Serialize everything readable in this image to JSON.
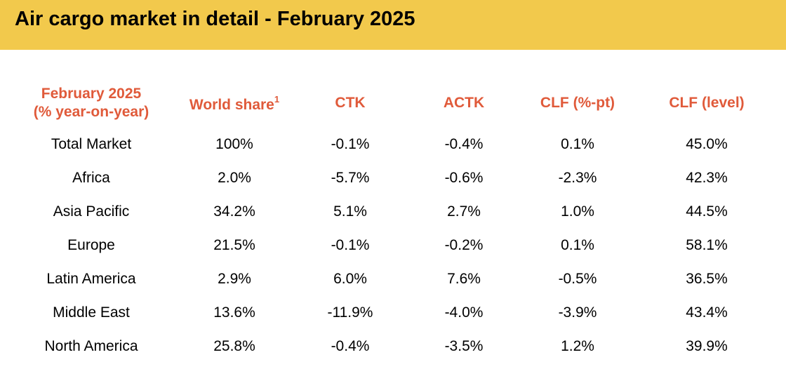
{
  "title": "Air cargo market in detail - February 2025",
  "table": {
    "header": {
      "region_line1": "February 2025",
      "region_line2": "(% year-on-year)",
      "world_share": "World share",
      "world_share_footnote": "1",
      "ctk": "CTK",
      "actk": "ACTK",
      "clf_pt": "CLF (%-pt)",
      "clf_level": "CLF (level)"
    },
    "rows": [
      {
        "region": "Total Market",
        "world_share": "100%",
        "ctk": "-0.1%",
        "actk": "-0.4%",
        "clf_pt": "0.1%",
        "clf_level": "45.0%"
      },
      {
        "region": "Africa",
        "world_share": "2.0%",
        "ctk": "-5.7%",
        "actk": "-0.6%",
        "clf_pt": "-2.3%",
        "clf_level": "42.3%"
      },
      {
        "region": "Asia Pacific",
        "world_share": "34.2%",
        "ctk": "5.1%",
        "actk": "2.7%",
        "clf_pt": "1.0%",
        "clf_level": "44.5%"
      },
      {
        "region": "Europe",
        "world_share": "21.5%",
        "ctk": "-0.1%",
        "actk": "-0.2%",
        "clf_pt": "0.1%",
        "clf_level": "58.1%"
      },
      {
        "region": "Latin America",
        "world_share": "2.9%",
        "ctk": "6.0%",
        "actk": "7.6%",
        "clf_pt": "-0.5%",
        "clf_level": "36.5%"
      },
      {
        "region": "Middle East",
        "world_share": "13.6%",
        "ctk": "-11.9%",
        "actk": "-4.0%",
        "clf_pt": "-3.9%",
        "clf_level": "43.4%"
      },
      {
        "region": "North America",
        "world_share": "25.8%",
        "ctk": "-0.4%",
        "actk": "-3.5%",
        "clf_pt": "1.2%",
        "clf_level": "39.9%"
      }
    ]
  },
  "colors": {
    "banner": "#f2c94c",
    "header_text": "#e05a3a",
    "body_text": "#000000"
  }
}
